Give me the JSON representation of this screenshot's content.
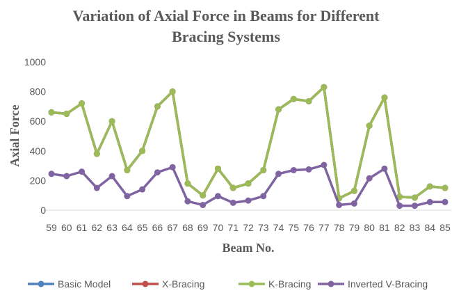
{
  "chart_data": {
    "type": "line",
    "title": "Variation of Axial Force in Beams for Different Bracing Systems",
    "xlabel": "Beam No.",
    "ylabel": "Axial Force",
    "categories": [
      59,
      60,
      61,
      62,
      63,
      64,
      65,
      66,
      67,
      68,
      69,
      70,
      71,
      72,
      73,
      74,
      75,
      76,
      77,
      78,
      79,
      80,
      81,
      82,
      83,
      84,
      85
    ],
    "ylim": [
      0,
      1000
    ],
    "yticks": [
      0,
      200,
      400,
      600,
      800,
      1000
    ],
    "grid": false,
    "legend": "bottom",
    "series": [
      {
        "name": "Basic Model",
        "color": "#4f81bd",
        "values": [
          660,
          650,
          720,
          380,
          600,
          270,
          400,
          700,
          800,
          180,
          100,
          280,
          150,
          180,
          270,
          680,
          750,
          735,
          830,
          80,
          130,
          570,
          760,
          90,
          85,
          160,
          150
        ]
      },
      {
        "name": "X-Bracing",
        "color": "#c0504d",
        "values": [
          660,
          650,
          720,
          380,
          600,
          270,
          400,
          700,
          800,
          180,
          100,
          280,
          150,
          180,
          270,
          680,
          750,
          735,
          830,
          80,
          130,
          570,
          760,
          90,
          85,
          160,
          150
        ]
      },
      {
        "name": "K-Bracing",
        "color": "#9bbb59",
        "values": [
          660,
          650,
          720,
          380,
          600,
          270,
          400,
          700,
          800,
          180,
          100,
          280,
          150,
          180,
          270,
          680,
          750,
          735,
          830,
          80,
          130,
          570,
          760,
          90,
          85,
          160,
          150
        ]
      },
      {
        "name": "Inverted V-Bracing",
        "color": "#8064a2",
        "values": [
          245,
          230,
          260,
          150,
          230,
          95,
          140,
          255,
          290,
          60,
          35,
          95,
          50,
          65,
          95,
          245,
          270,
          275,
          305,
          35,
          45,
          215,
          280,
          30,
          30,
          55,
          55
        ]
      }
    ]
  }
}
